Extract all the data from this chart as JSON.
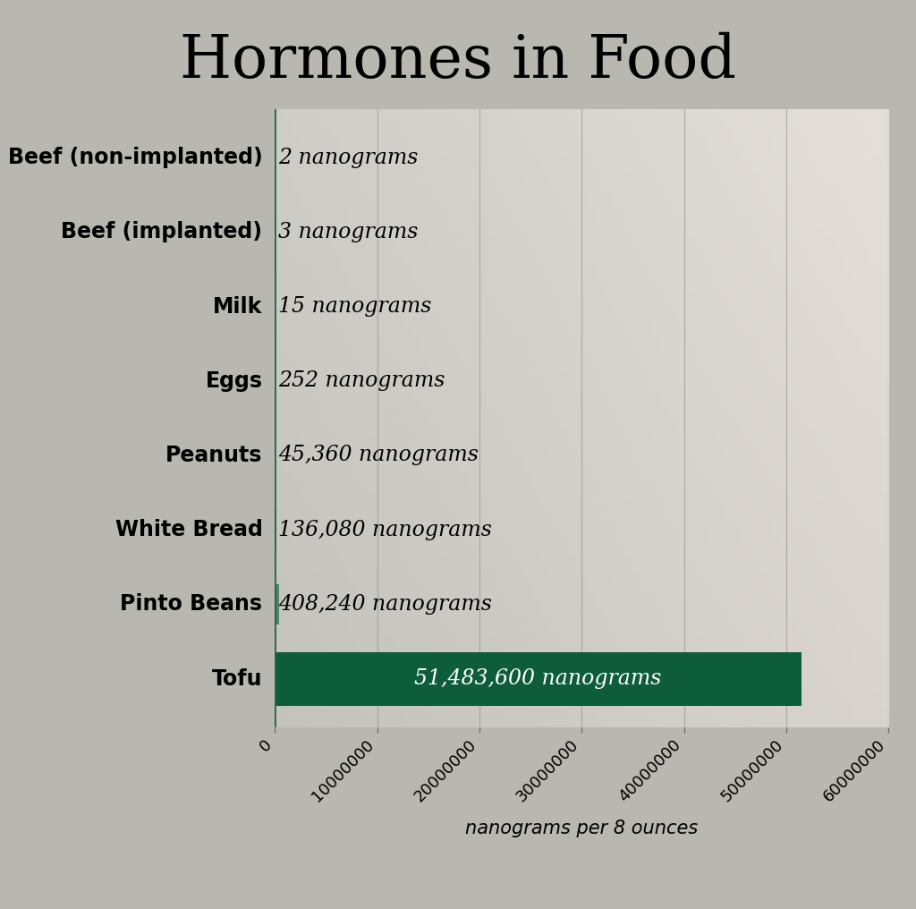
{
  "title": "Hormones in Food",
  "categories": [
    "Beef (non-implanted)",
    "Beef (implanted)",
    "Milk",
    "Eggs",
    "Peanuts",
    "White Bread",
    "Pinto Beans",
    "Tofu"
  ],
  "values": [
    2,
    3,
    15,
    252,
    45360,
    136080,
    408240,
    51483600
  ],
  "labels": [
    "2 nanograms",
    "3 nanograms",
    "15 nanograms",
    "252 nanograms",
    "45,360 nanograms",
    "136,080 nanograms",
    "408,240 nanograms",
    "51,483,600 nanograms"
  ],
  "bar_color_tofu": "#0d5c3a",
  "bar_color_small": "#1a6b45",
  "xlabel": "nanograms per 8 ounces",
  "xlim": [
    0,
    60000000
  ],
  "xticks": [
    0,
    10000000,
    20000000,
    30000000,
    40000000,
    50000000,
    60000000
  ],
  "xtick_labels": [
    "0",
    "10000000",
    "20000000",
    "30000000",
    "40000000",
    "50000000",
    "60000000"
  ],
  "bg_color_left": "#c8c8c0",
  "bg_color_mid": "#d8d8d0",
  "bg_color_right": "#b8b8b0",
  "title_fontsize": 48,
  "label_fontsize": 17,
  "category_fontsize": 17,
  "xlabel_fontsize": 15,
  "tick_fontsize": 13
}
